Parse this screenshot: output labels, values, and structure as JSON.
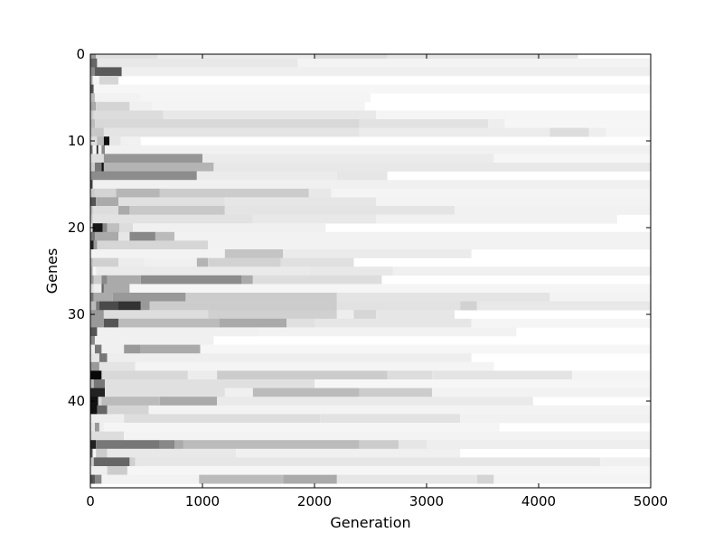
{
  "chart_data": {
    "type": "heatmap",
    "title": "",
    "xlabel": "Generation",
    "ylabel": "Genes",
    "xlim": [
      0,
      5000
    ],
    "ylim": [
      0,
      50
    ],
    "y_inverted": true,
    "x_ticks": [
      0,
      1000,
      2000,
      3000,
      4000,
      5000
    ],
    "y_ticks": [
      0,
      10,
      20,
      30,
      40
    ],
    "colormap": "greyscale (darker = higher value)",
    "colors": {
      "background": "#ffffff",
      "frame": "#000000"
    },
    "rows": [
      [
        [
          0,
          50,
          "#9a9a9a"
        ],
        [
          50,
          600,
          "#e0e0e0"
        ],
        [
          600,
          2000,
          "#ececec"
        ],
        [
          2000,
          2650,
          "#dcdcdc"
        ],
        [
          2650,
          4350,
          "#e6e6e6"
        ]
      ],
      [
        [
          0,
          60,
          "#666666"
        ],
        [
          60,
          1850,
          "#e8e8e8"
        ],
        [
          1850,
          5000,
          "#f3f3f3"
        ]
      ],
      [
        [
          0,
          40,
          "#888888"
        ],
        [
          40,
          280,
          "#5a5a5a"
        ],
        [
          280,
          5000,
          "#efefef"
        ]
      ],
      [
        [
          0,
          20,
          "#aaaaaa"
        ],
        [
          20,
          80,
          "#f4f4f4"
        ],
        [
          80,
          250,
          "#d6d6d6"
        ]
      ],
      [
        [
          0,
          30,
          "#555555"
        ],
        [
          30,
          5000,
          "#f6f6f6"
        ]
      ],
      [
        [
          0,
          40,
          "#bbbbbb"
        ],
        [
          40,
          450,
          "#f2f2f2"
        ],
        [
          450,
          2500,
          "#f5f5f5"
        ]
      ],
      [
        [
          0,
          50,
          "#aaaaaa"
        ],
        [
          50,
          350,
          "#d4d4d4"
        ],
        [
          350,
          550,
          "#f0f0f0"
        ],
        [
          550,
          2450,
          "#f4f4f4"
        ]
      ],
      [
        [
          0,
          30,
          "#cccccc"
        ],
        [
          30,
          650,
          "#dcdcdc"
        ],
        [
          650,
          2550,
          "#e8e8e8"
        ],
        [
          2550,
          5000,
          "#f5f5f5"
        ]
      ],
      [
        [
          0,
          40,
          "#bbbbbb"
        ],
        [
          40,
          2400,
          "#d8d8d8"
        ],
        [
          2400,
          3550,
          "#e2e2e2"
        ],
        [
          3550,
          3700,
          "#eeeeee"
        ],
        [
          3700,
          5000,
          "#f6f6f6"
        ]
      ],
      [
        [
          0,
          120,
          "#c8c8c8"
        ],
        [
          120,
          2400,
          "#e4e4e4"
        ],
        [
          2400,
          4100,
          "#ececec"
        ],
        [
          4100,
          4450,
          "#dddddd"
        ],
        [
          4450,
          4600,
          "#eeeeee"
        ],
        [
          4600,
          5000,
          "#f5f5f5"
        ]
      ],
      [
        [
          0,
          60,
          "#dddddd"
        ],
        [
          60,
          120,
          "#bbbbbb"
        ],
        [
          120,
          170,
          "#111111"
        ],
        [
          170,
          270,
          "#e6e6e6"
        ],
        [
          270,
          450,
          "#f1f1f1"
        ]
      ],
      [
        [
          0,
          20,
          "#777777"
        ],
        [
          20,
          55,
          "#f6f6f6"
        ],
        [
          55,
          70,
          "#222222"
        ],
        [
          70,
          100,
          "#eeeeee"
        ],
        [
          100,
          130,
          "#888888"
        ],
        [
          130,
          5000,
          "#f1f1f1"
        ]
      ],
      [
        [
          0,
          120,
          "#dddddd"
        ],
        [
          120,
          1000,
          "#969696"
        ],
        [
          1000,
          3600,
          "#ebebeb"
        ],
        [
          3600,
          5000,
          "#f6f6f6"
        ]
      ],
      [
        [
          0,
          40,
          "#cccccc"
        ],
        [
          40,
          100,
          "#777777"
        ],
        [
          100,
          120,
          "#111111"
        ],
        [
          120,
          1100,
          "#b4b4b4"
        ],
        [
          1100,
          5000,
          "#e8e8e8"
        ]
      ],
      [
        [
          0,
          950,
          "#8c8c8c"
        ],
        [
          950,
          2200,
          "#ebebeb"
        ],
        [
          2200,
          2650,
          "#e6e6e6"
        ]
      ],
      [
        [
          0,
          20,
          "#444444"
        ],
        [
          20,
          5000,
          "#f0f0f0"
        ]
      ],
      [
        [
          0,
          40,
          "#cccccc"
        ],
        [
          40,
          230,
          "#d4d4d4"
        ],
        [
          230,
          620,
          "#b6b6b6"
        ],
        [
          620,
          1950,
          "#cccccc"
        ],
        [
          1950,
          2150,
          "#e8e8e8"
        ],
        [
          2150,
          5000,
          "#f4f4f4"
        ]
      ],
      [
        [
          0,
          50,
          "#555555"
        ],
        [
          50,
          250,
          "#aaaaaa"
        ],
        [
          250,
          1200,
          "#e0e0e0"
        ],
        [
          1200,
          2550,
          "#e6e6e6"
        ],
        [
          2550,
          5000,
          "#f3f3f3"
        ]
      ],
      [
        [
          0,
          20,
          "#bbbbbb"
        ],
        [
          20,
          250,
          "#dddddd"
        ],
        [
          250,
          350,
          "#aaaaaa"
        ],
        [
          350,
          1200,
          "#c8c8c8"
        ],
        [
          1200,
          3250,
          "#e4e4e4"
        ],
        [
          3250,
          5000,
          "#f1f1f1"
        ]
      ],
      [
        [
          0,
          20,
          "#cccccc"
        ],
        [
          20,
          1450,
          "#e2e2e2"
        ],
        [
          1450,
          2550,
          "#e8e8e8"
        ],
        [
          2550,
          4700,
          "#f1f1f1"
        ]
      ],
      [
        [
          0,
          20,
          "#eeeeee"
        ],
        [
          20,
          110,
          "#161616"
        ],
        [
          110,
          150,
          "#888888"
        ],
        [
          150,
          260,
          "#bfbfbf"
        ],
        [
          260,
          380,
          "#dddddd"
        ],
        [
          380,
          2100,
          "#f0f0f0"
        ]
      ],
      [
        [
          0,
          40,
          "#777777"
        ],
        [
          40,
          250,
          "#aaaaaa"
        ],
        [
          250,
          350,
          "#e6e6e6"
        ],
        [
          350,
          580,
          "#888888"
        ],
        [
          580,
          750,
          "#bbbbbb"
        ],
        [
          750,
          5000,
          "#f2f2f2"
        ]
      ],
      [
        [
          0,
          30,
          "#222222"
        ],
        [
          30,
          60,
          "#999999"
        ],
        [
          60,
          1050,
          "#d6d6d6"
        ],
        [
          1050,
          5000,
          "#f2f2f2"
        ]
      ],
      [
        [
          0,
          1200,
          "#f3f3f3"
        ],
        [
          1200,
          1720,
          "#c4c4c4"
        ],
        [
          1720,
          3400,
          "#ebebeb"
        ]
      ],
      [
        [
          0,
          20,
          "#bbbbbb"
        ],
        [
          20,
          250,
          "#d0d0d0"
        ],
        [
          250,
          480,
          "#ececec"
        ],
        [
          480,
          950,
          "#f0f0f0"
        ],
        [
          950,
          1050,
          "#b4b4b4"
        ],
        [
          1050,
          1700,
          "#d2d2d2"
        ],
        [
          1700,
          2350,
          "#e0e0e0"
        ]
      ],
      [
        [
          0,
          20,
          "#aaaaaa"
        ],
        [
          20,
          50,
          "#f6f6f6"
        ],
        [
          50,
          1950,
          "#eaeaea"
        ],
        [
          1950,
          2700,
          "#e8e8e8"
        ],
        [
          2700,
          5000,
          "#f0f0f0"
        ]
      ],
      [
        [
          0,
          30,
          "#999999"
        ],
        [
          30,
          100,
          "#cccccc"
        ],
        [
          100,
          150,
          "#888888"
        ],
        [
          150,
          450,
          "#aaaaaa"
        ],
        [
          450,
          1350,
          "#8c8c8c"
        ],
        [
          1350,
          1450,
          "#aaaaaa"
        ],
        [
          1450,
          2600,
          "#dddddd"
        ]
      ],
      [
        [
          0,
          30,
          "#dddddd"
        ],
        [
          30,
          100,
          "#eeeeee"
        ],
        [
          100,
          120,
          "#666666"
        ],
        [
          120,
          350,
          "#aaaaaa"
        ],
        [
          350,
          5000,
          "#f5f5f5"
        ]
      ],
      [
        [
          0,
          30,
          "#777777"
        ],
        [
          30,
          200,
          "#aaaaaa"
        ],
        [
          200,
          850,
          "#999999"
        ],
        [
          850,
          2200,
          "#cccccc"
        ],
        [
          2200,
          4100,
          "#e4e4e4"
        ],
        [
          4100,
          5000,
          "#f3f3f3"
        ]
      ],
      [
        [
          0,
          50,
          "#bbbbbb"
        ],
        [
          50,
          80,
          "#777777"
        ],
        [
          80,
          250,
          "#4a4a4a"
        ],
        [
          250,
          450,
          "#333333"
        ],
        [
          450,
          530,
          "#999999"
        ],
        [
          530,
          2200,
          "#cccccc"
        ],
        [
          2200,
          3300,
          "#e2e2e2"
        ],
        [
          3300,
          3450,
          "#d2d2d2"
        ],
        [
          3450,
          5000,
          "#e8e8e8"
        ]
      ],
      [
        [
          0,
          120,
          "#999999"
        ],
        [
          120,
          1050,
          "#dddddd"
        ],
        [
          1050,
          2200,
          "#d0d0d0"
        ],
        [
          2200,
          2350,
          "#eeeeee"
        ],
        [
          2350,
          2550,
          "#d6d6d6"
        ],
        [
          2550,
          3250,
          "#e6e6e6"
        ]
      ],
      [
        [
          0,
          120,
          "#999999"
        ],
        [
          120,
          250,
          "#555555"
        ],
        [
          250,
          1150,
          "#bbbbbb"
        ],
        [
          1150,
          1750,
          "#aaaaaa"
        ],
        [
          1750,
          2000,
          "#e0e0e0"
        ],
        [
          2000,
          3400,
          "#e6e6e6"
        ],
        [
          3400,
          5000,
          "#f5f5f5"
        ]
      ],
      [
        [
          0,
          60,
          "#555555"
        ],
        [
          60,
          1500,
          "#f0f0f0"
        ],
        [
          1500,
          3800,
          "#f2f2f2"
        ]
      ],
      [
        [
          0,
          40,
          "#888888"
        ],
        [
          40,
          1100,
          "#f0f0f0"
        ]
      ],
      [
        [
          0,
          40,
          "#eeeeee"
        ],
        [
          40,
          100,
          "#777777"
        ],
        [
          100,
          300,
          "#f0f0f0"
        ],
        [
          300,
          450,
          "#999999"
        ],
        [
          450,
          980,
          "#aaaaaa"
        ],
        [
          980,
          5000,
          "#f6f6f6"
        ]
      ],
      [
        [
          0,
          80,
          "#e6e6e6"
        ],
        [
          80,
          150,
          "#777777"
        ],
        [
          150,
          3400,
          "#eeeeee"
        ]
      ],
      [
        [
          0,
          80,
          "#999999"
        ],
        [
          80,
          400,
          "#e4e4e4"
        ],
        [
          400,
          3600,
          "#f4f4f4"
        ]
      ],
      [
        [
          0,
          100,
          "#080808"
        ],
        [
          100,
          870,
          "#d8d8d8"
        ],
        [
          870,
          1130,
          "#ececec"
        ],
        [
          1130,
          2650,
          "#cccccc"
        ],
        [
          2650,
          3050,
          "#dddddd"
        ],
        [
          3050,
          4300,
          "#e4e4e4"
        ],
        [
          4300,
          5000,
          "#f4f4f4"
        ]
      ],
      [
        [
          0,
          30,
          "#bbbbbb"
        ],
        [
          30,
          130,
          "#777777"
        ],
        [
          130,
          2000,
          "#e0e0e0"
        ],
        [
          2000,
          5000,
          "#f6f6f6"
        ]
      ],
      [
        [
          0,
          130,
          "#222222"
        ],
        [
          130,
          1200,
          "#e0e0e0"
        ],
        [
          1200,
          1450,
          "#f0f0f0"
        ],
        [
          1450,
          2400,
          "#bbbbbb"
        ],
        [
          2400,
          3050,
          "#cccccc"
        ],
        [
          3050,
          5000,
          "#f2f2f2"
        ]
      ],
      [
        [
          0,
          70,
          "#111111"
        ],
        [
          70,
          100,
          "#d8d8d8"
        ],
        [
          100,
          620,
          "#bbbbbb"
        ],
        [
          620,
          1130,
          "#aaaaaa"
        ],
        [
          1130,
          3950,
          "#eaeaea"
        ]
      ],
      [
        [
          0,
          60,
          "#111111"
        ],
        [
          60,
          150,
          "#666666"
        ],
        [
          150,
          520,
          "#d4d4d4"
        ],
        [
          520,
          5000,
          "#f3f3f3"
        ]
      ],
      [
        [
          0,
          300,
          "#eeeeee"
        ],
        [
          300,
          2050,
          "#dddddd"
        ],
        [
          2050,
          3300,
          "#e2e2e2"
        ],
        [
          3300,
          5000,
          "#f1f1f1"
        ]
      ],
      [
        [
          0,
          40,
          "#e6e6e6"
        ],
        [
          40,
          80,
          "#999999"
        ],
        [
          80,
          120,
          "#eeeeee"
        ],
        [
          120,
          3650,
          "#f5f5f5"
        ]
      ],
      [
        [
          0,
          300,
          "#dddddd"
        ],
        [
          300,
          5000,
          "#f3f3f3"
        ]
      ],
      [
        [
          0,
          50,
          "#222222"
        ],
        [
          50,
          620,
          "#777777"
        ],
        [
          620,
          750,
          "#888888"
        ],
        [
          750,
          830,
          "#aaaaaa"
        ],
        [
          830,
          2400,
          "#bbbbbb"
        ],
        [
          2400,
          2750,
          "#cccccc"
        ],
        [
          2750,
          3000,
          "#e6e6e6"
        ],
        [
          3000,
          5000,
          "#eeeeee"
        ]
      ],
      [
        [
          0,
          20,
          "#555555"
        ],
        [
          20,
          50,
          "#f5f5f5"
        ],
        [
          50,
          150,
          "#cccccc"
        ],
        [
          150,
          1300,
          "#e8e8e8"
        ],
        [
          1300,
          3300,
          "#f0f0f0"
        ]
      ],
      [
        [
          0,
          30,
          "#cccccc"
        ],
        [
          30,
          350,
          "#666666"
        ],
        [
          350,
          400,
          "#d0d0d0"
        ],
        [
          400,
          4550,
          "#e6e6e6"
        ],
        [
          4550,
          5000,
          "#f0f0f0"
        ]
      ],
      [
        [
          0,
          150,
          "#eeeeee"
        ],
        [
          150,
          330,
          "#cccccc"
        ],
        [
          330,
          5000,
          "#f6f6f6"
        ]
      ],
      [
        [
          0,
          40,
          "#555555"
        ],
        [
          40,
          100,
          "#888888"
        ],
        [
          100,
          970,
          "#f2f2f2"
        ],
        [
          970,
          1720,
          "#bbbbbb"
        ],
        [
          1720,
          2200,
          "#aaaaaa"
        ],
        [
          2200,
          3450,
          "#e6e6e6"
        ],
        [
          3450,
          3600,
          "#d4d4d4"
        ],
        [
          3600,
          5000,
          "#f4f4f4"
        ]
      ]
    ]
  }
}
